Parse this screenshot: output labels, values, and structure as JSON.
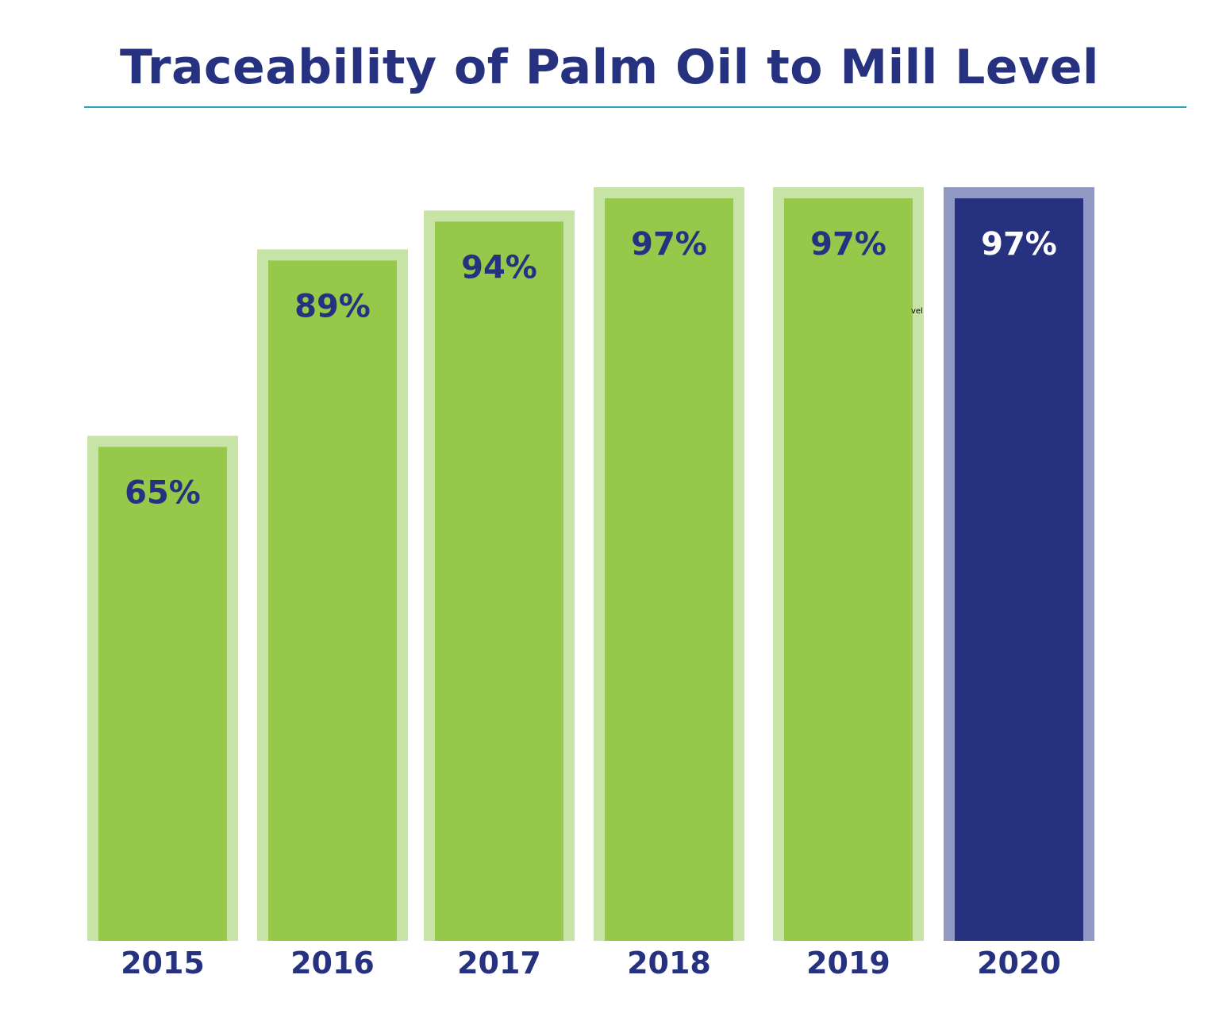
{
  "chart_data": {
    "type": "bar",
    "title": "Traceability of Palm Oil to Mill Level",
    "xlabel": "",
    "ylabel": "",
    "categories": [
      "2015",
      "2016",
      "2017",
      "2018",
      "2019",
      "2020"
    ],
    "values": [
      65,
      89,
      94,
      97,
      97,
      97
    ],
    "data_labels": [
      "65%",
      "89%",
      "94%",
      "97%",
      "97%",
      "97%"
    ],
    "highlight_index": 5,
    "ylim": [
      0,
      100
    ],
    "grid": false,
    "legend": "none",
    "stray_label": "vel",
    "colors": {
      "bar": "#96c84a",
      "bar_frame": "#c8e3a6",
      "highlight_bar": "#26327f",
      "highlight_frame": "#9198c2",
      "label": "#26327f",
      "highlight_label": "#ffffff",
      "title": "#26327f",
      "title_rule": "#2aa6b8"
    }
  }
}
